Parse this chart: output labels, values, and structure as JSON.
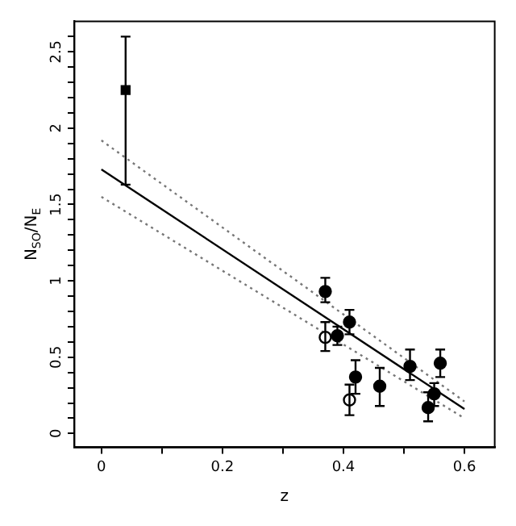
{
  "chart_data": {
    "type": "scatter",
    "xlabel": "z",
    "ylabel": "N$_{SO}$/N$_{E}$",
    "xlim": [
      -0.045,
      0.65
    ],
    "ylim": [
      -0.09,
      2.7
    ],
    "xticks": [
      0,
      {
        "value": 0.1,
        "label": null
      },
      0.2,
      {
        "value": 0.3,
        "label": null
      },
      0.4,
      {
        "value": 0.5,
        "label": null
      },
      0.6
    ],
    "yticks": [
      0,
      {
        "value": 0.1,
        "label": null
      },
      {
        "value": 0.2,
        "label": null
      },
      {
        "value": 0.3,
        "label": null
      },
      {
        "value": 0.4,
        "label": null
      },
      0.5,
      {
        "value": 0.6,
        "label": null
      },
      {
        "value": 0.7,
        "label": null
      },
      {
        "value": 0.8,
        "label": null
      },
      {
        "value": 0.9,
        "label": null
      },
      1,
      {
        "value": 1.1,
        "label": null
      },
      {
        "value": 1.2,
        "label": null
      },
      {
        "value": 1.3,
        "label": null
      },
      {
        "value": 1.4,
        "label": null
      },
      1.5,
      {
        "value": 1.6,
        "label": null
      },
      {
        "value": 1.7,
        "label": null
      },
      {
        "value": 1.8,
        "label": null
      },
      {
        "value": 1.9,
        "label": null
      },
      2,
      {
        "value": 2.1,
        "label": null
      },
      {
        "value": 2.2,
        "label": null
      },
      {
        "value": 2.3,
        "label": null
      },
      {
        "value": 2.4,
        "label": null
      },
      2.5,
      {
        "value": 2.6,
        "label": null
      }
    ],
    "grid": false,
    "legend": false,
    "series": [
      {
        "type": "scatter",
        "marker": "circle",
        "color": "#000000",
        "x": [
          0.37,
          0.39,
          0.41,
          0.42,
          0.46,
          0.51,
          0.54,
          0.55,
          0.56
        ],
        "values": [
          0.93,
          0.64,
          0.73,
          0.37,
          0.31,
          0.44,
          0.17,
          0.26,
          0.46
        ],
        "errors": [
          [
            0.86,
            1.02
          ],
          [
            0.58,
            0.7
          ],
          [
            0.65,
            0.81
          ],
          [
            0.26,
            0.48
          ],
          [
            0.18,
            0.43
          ],
          [
            0.35,
            0.55
          ],
          [
            0.08,
            0.27
          ],
          [
            0.18,
            0.33
          ],
          [
            0.37,
            0.55
          ]
        ]
      },
      {
        "marker": "circle",
        "color": "#ffffff",
        "x": [
          0.37,
          0.41
        ],
        "values": [
          0.63,
          0.22
        ],
        "errors": [
          [
            0.54,
            0.73
          ],
          [
            0.12,
            0.32
          ]
        ]
      },
      {
        "marker": "square",
        "color": "#000000",
        "x": [
          0.04
        ],
        "values": [
          2.25
        ],
        "errors": [
          [
            1.63,
            2.6
          ]
        ]
      },
      {
        "type": "line",
        "marker": "none",
        "line_style": "solid",
        "color": "#000000",
        "x": [
          0,
          0.6
        ],
        "values": [
          1.73,
          0.16
        ]
      },
      {
        "type": "line",
        "marker": "none",
        "line_style": "dotted",
        "color": "#777777",
        "x": [
          0,
          0.6
        ],
        "values": [
          1.92,
          0.21
        ]
      },
      {
        "type": "line",
        "marker": "none",
        "line_style": "dotted",
        "color": "#777777",
        "x": [
          0,
          0.6
        ],
        "values": [
          1.55,
          0.1
        ]
      }
    ]
  }
}
